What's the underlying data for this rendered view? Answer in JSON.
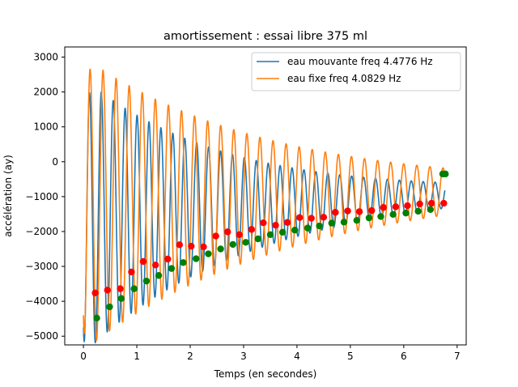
{
  "chart_data": {
    "type": "line",
    "title": "amortissement : essai libre 375 ml",
    "xlabel": "Temps (en secondes)",
    "ylabel": "accélération  (ay)",
    "xlim": [
      -0.35,
      7.17
    ],
    "ylim": [
      -5250,
      3290
    ],
    "xticks": [
      0,
      1,
      2,
      3,
      4,
      5,
      6,
      7
    ],
    "yticks": [
      -5000,
      -4000,
      -3000,
      -2000,
      -1000,
      0,
      1000,
      2000,
      3000
    ],
    "grid": false,
    "legend_position": "top-right",
    "series": [
      {
        "name": "eau mouvante freq 4.4776 Hz",
        "kind": "damped_oscillation",
        "color": "#1f77b4",
        "frequency_hz": 4.4776,
        "offset": -1550,
        "initial_amplitude": 3950,
        "amplitude_decay_rate": 0.35,
        "offset_decay_rate": 0.07,
        "t_start": 0.0,
        "t_end": 6.77,
        "peak_values": [
          2380,
          1880,
          1790,
          1600,
          1240,
          800,
          400,
          300,
          200,
          90,
          -100,
          -230,
          -370,
          -460,
          -580,
          -660,
          -780,
          -830,
          -890,
          -950,
          -1020,
          -1050,
          -1080,
          -1150,
          -1180,
          -1230,
          -1260,
          -1290,
          -1310,
          -1330
        ]
      },
      {
        "name": "eau fixe freq 4.0829 Hz",
        "kind": "damped_oscillation",
        "color": "#ff7f0e",
        "frequency_hz": 4.0829,
        "offset": -1200,
        "initial_amplitude": 4200,
        "amplitude_decay_rate": 0.27,
        "offset_decay_rate": 0.05,
        "t_start": 0.0,
        "t_end": 6.77,
        "peak_values": [
          3020,
          2600,
          2400,
          2020,
          1860,
          1780,
          1190,
          1100,
          1000,
          800,
          580,
          460,
          370,
          190,
          120,
          0,
          -140,
          -210,
          -230,
          -330,
          -420,
          -480,
          -600,
          -700,
          -710,
          -740,
          -840,
          -900
        ]
      }
    ],
    "minima_markers": [
      {
        "name": "minima eau fixe",
        "color": "#ff0000",
        "x": [
          0.22,
          0.45,
          0.69,
          0.9,
          1.12,
          1.35,
          1.58,
          1.8,
          2.02,
          2.25,
          2.48,
          2.7,
          2.92,
          3.15,
          3.37,
          3.6,
          3.82,
          4.05,
          4.27,
          4.5,
          4.72,
          4.95,
          5.17,
          5.4,
          5.62,
          5.85,
          6.07,
          6.3,
          6.52,
          6.75
        ],
        "y": [
          -3760,
          -3680,
          -3640,
          -3160,
          -2860,
          -2960,
          -2790,
          -2380,
          -2420,
          -2440,
          -2130,
          -2010,
          -2090,
          -1940,
          -1750,
          -1820,
          -1740,
          -1600,
          -1620,
          -1590,
          -1450,
          -1410,
          -1430,
          -1400,
          -1310,
          -1290,
          -1260,
          -1210,
          -1190,
          -1190
        ]
      },
      {
        "name": "minima eau mouvante",
        "color": "#008000",
        "x": [
          0.25,
          0.49,
          0.71,
          0.95,
          1.18,
          1.41,
          1.65,
          1.87,
          2.11,
          2.34,
          2.57,
          2.8,
          3.04,
          3.27,
          3.5,
          3.73,
          3.96,
          4.2,
          4.42,
          4.65,
          4.88,
          5.12,
          5.35,
          5.57,
          5.8,
          6.04,
          6.27,
          6.5,
          6.73,
          6.78
        ],
        "y": [
          -4480,
          -4160,
          -3920,
          -3640,
          -3420,
          -3260,
          -3060,
          -2890,
          -2780,
          -2640,
          -2500,
          -2370,
          -2310,
          -2210,
          -2090,
          -2020,
          -1960,
          -1900,
          -1840,
          -1760,
          -1730,
          -1680,
          -1610,
          -1570,
          -1510,
          -1470,
          -1420,
          -1370,
          -350,
          -350
        ]
      }
    ]
  }
}
